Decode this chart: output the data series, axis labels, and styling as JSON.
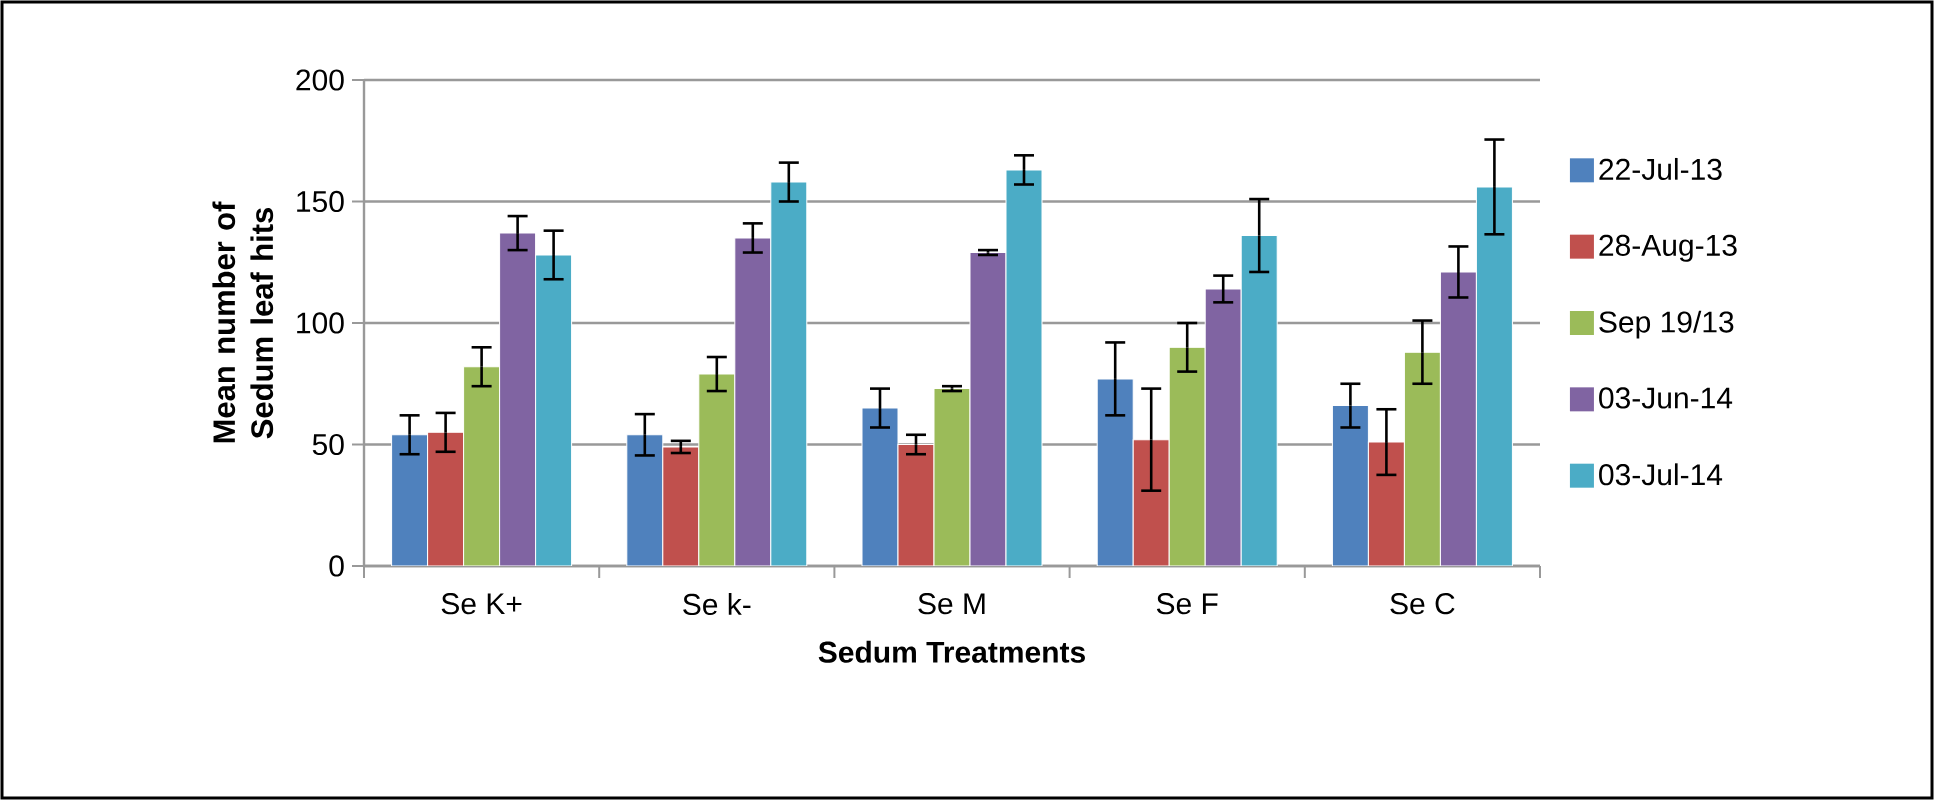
{
  "chart_data": {
    "type": "bar",
    "xlabel": "Sedum Treatments",
    "ylabel": "Mean number of Sedum leaf hits",
    "categories": [
      "Se K+",
      "Se k-",
      "Se M",
      "Se F",
      "Se C"
    ],
    "series": [
      {
        "name": "22-Jul-13",
        "color": "#4f81bd",
        "values": [
          54,
          54,
          65,
          77,
          66
        ],
        "errors": [
          8,
          8.5,
          8,
          15,
          9
        ]
      },
      {
        "name": "28-Aug-13",
        "color": "#c0504d",
        "values": [
          55,
          49,
          50,
          52,
          51
        ],
        "errors": [
          8,
          2.5,
          4,
          21,
          13.5
        ]
      },
      {
        "name": "Sep 19/13",
        "color": "#9bbb59",
        "values": [
          82,
          79,
          73,
          90,
          88
        ],
        "errors": [
          8,
          7,
          1,
          10,
          13
        ]
      },
      {
        "name": "03-Jun-14",
        "color": "#8064a2",
        "values": [
          137,
          135,
          129,
          114,
          121
        ],
        "errors": [
          7,
          6,
          1,
          5.5,
          10.5
        ]
      },
      {
        "name": "03-Jul-14",
        "color": "#4bacc6",
        "values": [
          128,
          158,
          163,
          136,
          156
        ],
        "errors": [
          10,
          8,
          6,
          15,
          19.5
        ]
      }
    ],
    "ylim": [
      0,
      200
    ],
    "yticks": [
      0,
      50,
      100,
      150,
      200
    ],
    "grid": "y",
    "legend": "right"
  }
}
